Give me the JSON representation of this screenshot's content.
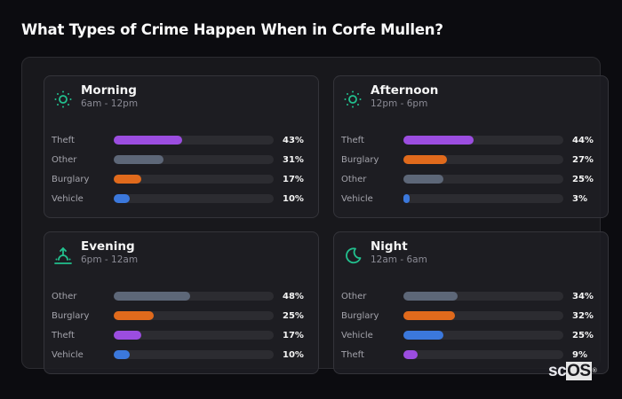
{
  "page": {
    "title": "What Types of Crime Happen When in Corfe Mullen?"
  },
  "colors": {
    "accent": "#22c08e",
    "theft": "#9b4de0",
    "other": "#5d6778",
    "burglary": "#e06a1c",
    "vehicle": "#3b78dc",
    "track": "#2c2c31"
  },
  "cards": [
    {
      "title": "Morning",
      "subtitle": "6am - 12pm",
      "icon": "sun-icon",
      "rows": [
        {
          "label": "Theft",
          "value": 43,
          "text": "43%",
          "color": "#9b4de0"
        },
        {
          "label": "Other",
          "value": 31,
          "text": "31%",
          "color": "#5d6778"
        },
        {
          "label": "Burglary",
          "value": 17,
          "text": "17%",
          "color": "#e06a1c"
        },
        {
          "label": "Vehicle",
          "value": 10,
          "text": "10%",
          "color": "#3b78dc"
        }
      ]
    },
    {
      "title": "Afternoon",
      "subtitle": "12pm - 6pm",
      "icon": "sun-icon",
      "rows": [
        {
          "label": "Theft",
          "value": 44,
          "text": "44%",
          "color": "#9b4de0"
        },
        {
          "label": "Burglary",
          "value": 27,
          "text": "27%",
          "color": "#e06a1c"
        },
        {
          "label": "Other",
          "value": 25,
          "text": "25%",
          "color": "#5d6778"
        },
        {
          "label": "Vehicle",
          "value": 3,
          "text": "3%",
          "color": "#3b78dc"
        }
      ]
    },
    {
      "title": "Evening",
      "subtitle": "6pm - 12am",
      "icon": "sunset-icon",
      "rows": [
        {
          "label": "Other",
          "value": 48,
          "text": "48%",
          "color": "#5d6778"
        },
        {
          "label": "Burglary",
          "value": 25,
          "text": "25%",
          "color": "#e06a1c"
        },
        {
          "label": "Theft",
          "value": 17,
          "text": "17%",
          "color": "#9b4de0"
        },
        {
          "label": "Vehicle",
          "value": 10,
          "text": "10%",
          "color": "#3b78dc"
        }
      ]
    },
    {
      "title": "Night",
      "subtitle": "12am - 6am",
      "icon": "moon-icon",
      "rows": [
        {
          "label": "Other",
          "value": 34,
          "text": "34%",
          "color": "#5d6778"
        },
        {
          "label": "Burglary",
          "value": 32,
          "text": "32%",
          "color": "#e06a1c"
        },
        {
          "label": "Vehicle",
          "value": 25,
          "text": "25%",
          "color": "#3b78dc"
        },
        {
          "label": "Theft",
          "value": 9,
          "text": "9%",
          "color": "#9b4de0"
        }
      ]
    }
  ],
  "logo": {
    "sc": "sc",
    "os": "OS",
    "reg": "®"
  },
  "chart_data": [
    {
      "type": "bar",
      "title": "Morning",
      "subtitle": "6am - 12pm",
      "orientation": "horizontal",
      "categories": [
        "Theft",
        "Other",
        "Burglary",
        "Vehicle"
      ],
      "values": [
        43,
        31,
        17,
        10
      ],
      "xlim": [
        0,
        100
      ],
      "unit": "%"
    },
    {
      "type": "bar",
      "title": "Afternoon",
      "subtitle": "12pm - 6pm",
      "orientation": "horizontal",
      "categories": [
        "Theft",
        "Burglary",
        "Other",
        "Vehicle"
      ],
      "values": [
        44,
        27,
        25,
        3
      ],
      "xlim": [
        0,
        100
      ],
      "unit": "%"
    },
    {
      "type": "bar",
      "title": "Evening",
      "subtitle": "6pm - 12am",
      "orientation": "horizontal",
      "categories": [
        "Other",
        "Burglary",
        "Theft",
        "Vehicle"
      ],
      "values": [
        48,
        25,
        17,
        10
      ],
      "xlim": [
        0,
        100
      ],
      "unit": "%"
    },
    {
      "type": "bar",
      "title": "Night",
      "subtitle": "12am - 6am",
      "orientation": "horizontal",
      "categories": [
        "Other",
        "Burglary",
        "Vehicle",
        "Theft"
      ],
      "values": [
        34,
        32,
        25,
        9
      ],
      "xlim": [
        0,
        100
      ],
      "unit": "%"
    }
  ]
}
